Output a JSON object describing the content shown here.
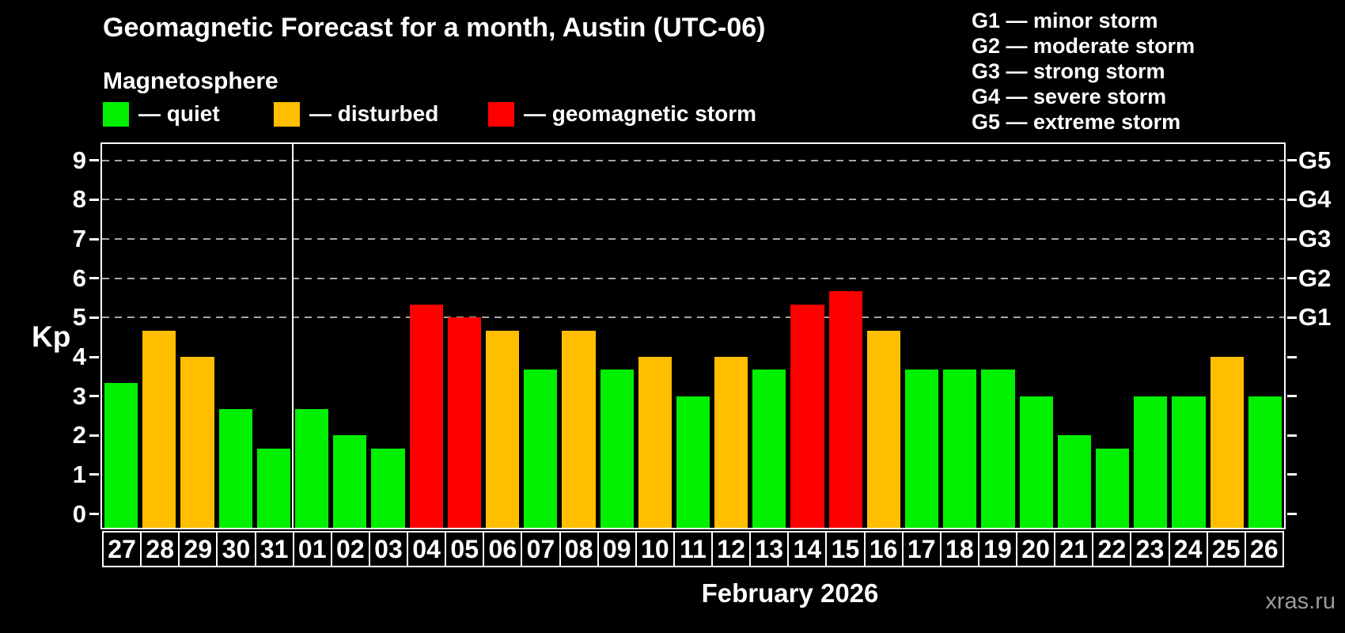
{
  "header": {
    "title": "Geomagnetic Forecast for a month, Austin (UTC-06)",
    "subtitle": "Magnetosphere"
  },
  "legend": [
    {
      "key": "quiet",
      "label": "— quiet",
      "color": "#00f000"
    },
    {
      "key": "disturbed",
      "label": "— disturbed",
      "color": "#ffbf00"
    },
    {
      "key": "storm",
      "label": "— geomagnetic storm",
      "color": "#fe0000"
    }
  ],
  "g_legend": [
    "G1 — minor storm",
    "G2 — moderate storm",
    "G3 — strong storm",
    "G4 — severe storm",
    "G5 — extreme storm"
  ],
  "watermark": "xras.ru",
  "chart_data": {
    "type": "bar",
    "title": "Geomagnetic Forecast for a month, Austin (UTC-06)",
    "ylabel": "Kp",
    "month_label": "February 2026",
    "ylim": [
      -0.35,
      9.42
    ],
    "yticks": [
      0,
      1,
      2,
      3,
      4,
      5,
      6,
      7,
      8,
      9
    ],
    "gridlines": [
      5,
      6,
      7,
      8,
      9
    ],
    "right_scale": [
      {
        "kp": 5,
        "label": "G1"
      },
      {
        "kp": 6,
        "label": "G2"
      },
      {
        "kp": 7,
        "label": "G3"
      },
      {
        "kp": 8,
        "label": "G4"
      },
      {
        "kp": 9,
        "label": "G5"
      }
    ],
    "separator_after_index": 4,
    "categories": [
      "27",
      "28",
      "29",
      "30",
      "31",
      "01",
      "02",
      "03",
      "04",
      "05",
      "06",
      "07",
      "08",
      "09",
      "10",
      "11",
      "12",
      "13",
      "14",
      "15",
      "16",
      "17",
      "18",
      "19",
      "20",
      "21",
      "22",
      "23",
      "24",
      "25",
      "26"
    ],
    "values": [
      3.33,
      4.67,
      4.0,
      2.67,
      1.67,
      2.67,
      2.0,
      1.67,
      5.33,
      5.0,
      4.67,
      3.67,
      4.67,
      3.67,
      4.0,
      3.0,
      4.0,
      3.67,
      5.33,
      5.67,
      4.67,
      3.67,
      3.67,
      3.67,
      3.0,
      2.0,
      1.67,
      3.0,
      3.0,
      4.0,
      3.0
    ],
    "statuses": [
      "quiet",
      "disturbed",
      "disturbed",
      "quiet",
      "quiet",
      "quiet",
      "quiet",
      "quiet",
      "storm",
      "storm",
      "disturbed",
      "quiet",
      "disturbed",
      "quiet",
      "disturbed",
      "quiet",
      "disturbed",
      "quiet",
      "storm",
      "storm",
      "disturbed",
      "quiet",
      "quiet",
      "quiet",
      "quiet",
      "quiet",
      "quiet",
      "quiet",
      "quiet",
      "disturbed",
      "quiet"
    ],
    "legend_colors": {
      "quiet": "#00f000",
      "disturbed": "#ffbf00",
      "storm": "#fe0000"
    }
  }
}
